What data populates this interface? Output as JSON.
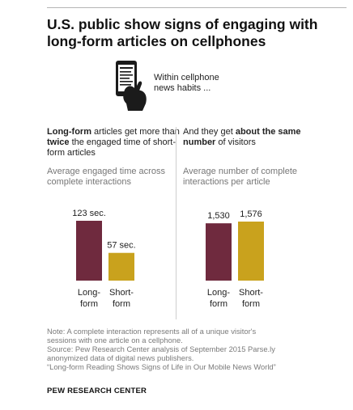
{
  "title": "U.S. public show signs of engaging with long-form articles on cellphones",
  "intro": "Within cellphone\nnews habits ...",
  "icon": "smartphone-hand-icon",
  "colors": {
    "long_form": "#6f2a3e",
    "short_form": "#c9a21d"
  },
  "left_panel": {
    "heading_parts": [
      {
        "text": "Long-form",
        "bold": true
      },
      {
        "text": " articles get more than ",
        "bold": false
      },
      {
        "text": "twice",
        "bold": true
      },
      {
        "text": " the engaged time of short-form articles",
        "bold": false
      }
    ],
    "subheading": "Average engaged time across complete interactions"
  },
  "right_panel": {
    "heading_parts": [
      {
        "text": "And they get ",
        "bold": false
      },
      {
        "text": "about the same number",
        "bold": true
      },
      {
        "text": " of visitors",
        "bold": false
      }
    ],
    "subheading": "Average number of complete interactions per article"
  },
  "chart_data": [
    {
      "type": "bar",
      "categories": [
        "Long-\nform",
        "Short-\nform"
      ],
      "values": [
        123,
        57
      ],
      "value_labels": [
        "123 sec.",
        "57 sec."
      ],
      "ylabel": "Average engaged time across complete interactions"
    },
    {
      "type": "bar",
      "categories": [
        "Long-\nform",
        "Short-\nform"
      ],
      "values": [
        1530,
        1576
      ],
      "value_labels": [
        "1,530",
        "1,576"
      ],
      "ylabel": "Average number of complete interactions per article"
    }
  ],
  "note_lines": [
    "Note: A complete interaction represents all of a unique visitor's",
    "sessions with one article on a cellphone.",
    "Source: Pew Research Center analysis of September 2015 Parse.ly",
    "anonymized data of digital news publishers.",
    "“Long-form Reading Shows Signs of Life in Our Mobile News World”"
  ],
  "source_label": "PEW RESEARCH CENTER"
}
